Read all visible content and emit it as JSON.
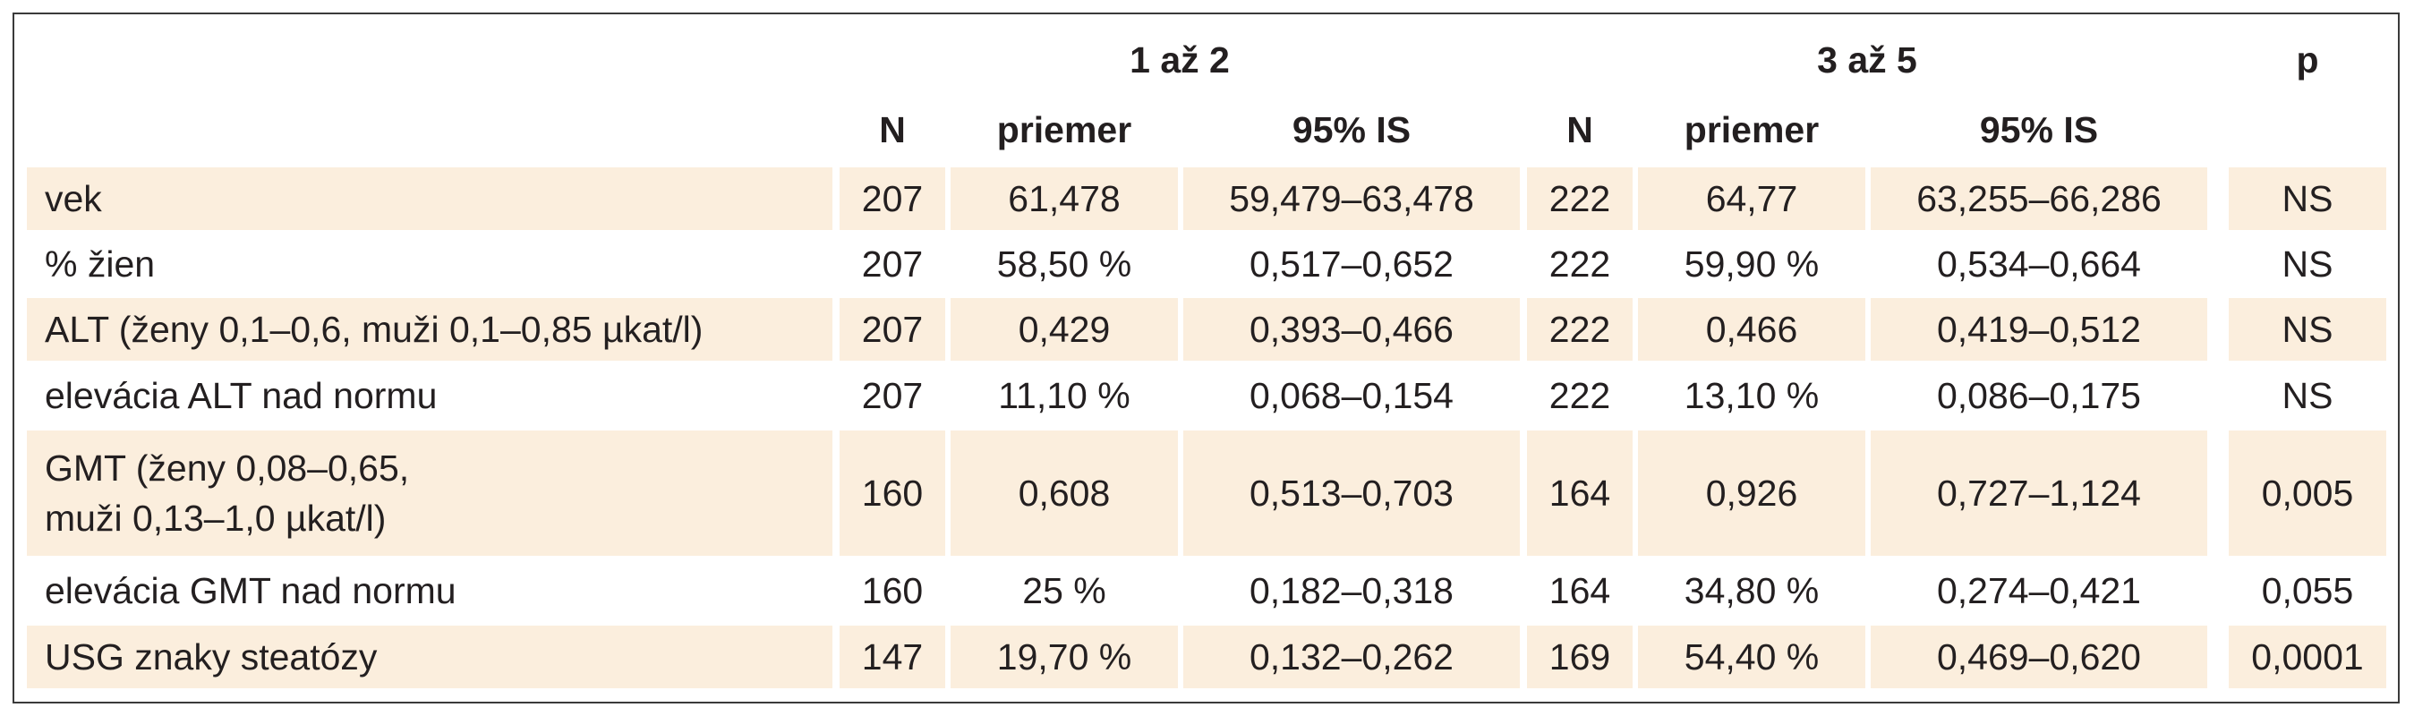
{
  "header": {
    "group1": "1 až 2",
    "group2": "3 až 5",
    "p": "p",
    "n1": "N",
    "mean1": "priemer",
    "ci1": "95% IS",
    "n2": "N",
    "mean2": "priemer",
    "ci2": "95% IS"
  },
  "rows": [
    {
      "label": "vek",
      "n1": "207",
      "mean1": "61,478",
      "ci1": "59,479–63,478",
      "n2": "222",
      "mean2": "64,77",
      "ci2": "63,255–66,286",
      "p": "NS"
    },
    {
      "label": "% žien",
      "n1": "207",
      "mean1": "58,50 %",
      "ci1": "0,517–0,652",
      "n2": "222",
      "mean2": "59,90 %",
      "ci2": "0,534–0,664",
      "p": "NS"
    },
    {
      "label": "ALT (ženy 0,1–0,6, muži 0,1–0,85 µkat/l)",
      "n1": "207",
      "mean1": "0,429",
      "ci1": "0,393–0,466",
      "n2": "222",
      "mean2": "0,466",
      "ci2": "0,419–0,512",
      "p": "NS"
    },
    {
      "label": "elevácia ALT nad normu",
      "n1": "207",
      "mean1": "11,10 %",
      "ci1": "0,068–0,154",
      "n2": "222",
      "mean2": "13,10 %",
      "ci2": "0,086–0,175",
      "p": "NS"
    },
    {
      "label_line1": "GMT (ženy 0,08–0,65,",
      "label_line2": "muži 0,13–1,0 µkat/l)",
      "n1": "160",
      "mean1": "0,608",
      "ci1": "0,513–0,703",
      "n2": "164",
      "mean2": "0,926",
      "ci2": "0,727–1,124",
      "p": "0,005"
    },
    {
      "label": "elevácia GMT nad normu",
      "n1": "160",
      "mean1": "25 %",
      "ci1": "0,182–0,318",
      "n2": "164",
      "mean2": "34,80 %",
      "ci2": "0,274–0,421",
      "p": "0,055"
    },
    {
      "label": "USG znaky steatózy",
      "n1": "147",
      "mean1": "19,70 %",
      "ci1": "0,132–0,262",
      "n2": "169",
      "mean2": "54,40 %",
      "ci2": "0,469–0,620",
      "p": "0,0001"
    }
  ],
  "colors": {
    "row_shade": "#fbeedd",
    "border": "#3a3a3a",
    "text": "#231f20"
  }
}
